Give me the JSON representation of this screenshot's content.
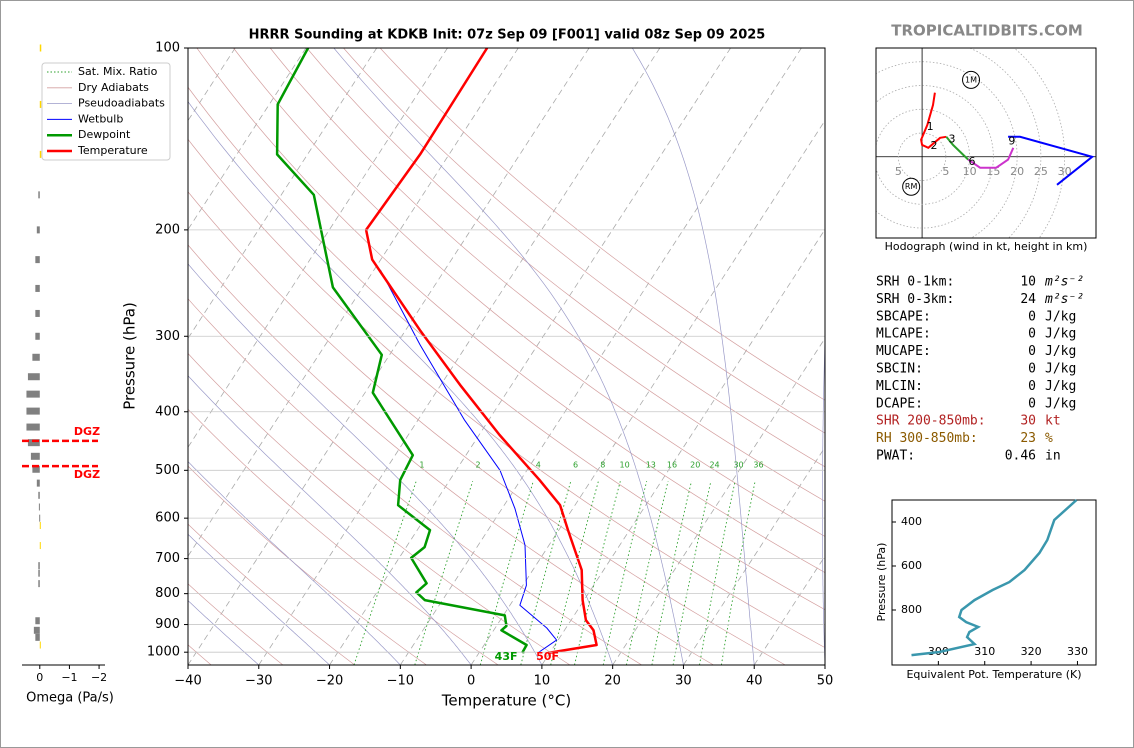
{
  "site": "TROPICALTIDBITS.COM",
  "chart_data": [
    {
      "type": "skewt",
      "title": "HRRR Sounding at KDKB Init: 07z Sep 09 [F001] valid 08z Sep 09 2025",
      "xlabel": "Temperature (°C)",
      "ylabel": "Pressure (hPa)",
      "log_y": true,
      "xlim": [
        -40,
        50
      ],
      "ylim": [
        1050,
        100
      ],
      "xticks": [
        {
          "value": -40,
          "label": "−40"
        },
        {
          "value": -30,
          "label": "−30"
        },
        {
          "value": -20,
          "label": "−20"
        },
        {
          "value": -10,
          "label": "−10"
        },
        0,
        10,
        20,
        30,
        40,
        50
      ],
      "yticks": [
        100,
        200,
        300,
        400,
        500,
        600,
        700,
        800,
        900,
        1000
      ],
      "reference_lines": [
        {
          "name": "Sat. Mix. Ratio",
          "color": "#2ca02c",
          "labels": [
            1,
            2,
            4,
            6,
            8,
            10,
            13,
            16,
            20,
            24,
            30,
            36
          ]
        },
        {
          "name": "Dry Adiabats",
          "color": "#d4a0a0"
        },
        {
          "name": "Pseudoadiabats",
          "color": "#9a9ac8"
        }
      ],
      "series": [
        {
          "name": "Wetbulb",
          "color": "#0000ff",
          "y": [
            1003,
            955,
            912,
            836,
            775,
            665,
            578,
            500,
            413,
            310,
            233
          ],
          "values": [
            8.3,
            9.8,
            7.3,
            1.4,
            0.5,
            -3.4,
            -8.2,
            -13.8,
            -23.4,
            -36.6,
            -49.1
          ]
        },
        {
          "name": "Dewpoint",
          "color": "#009900",
          "y": [
            1003,
            973,
            920,
            905,
            869,
            820,
            796,
            769,
            698,
            670,
            628,
            571,
            519,
            472,
            372,
            322,
            249,
            175,
            150,
            124,
            100
          ],
          "values": [
            6.1,
            6.0,
            1.1,
            1.4,
            0.2,
            -12.5,
            -14.4,
            -13.8,
            -18.3,
            -17.4,
            -18.2,
            -25.0,
            -27.0,
            -27.5,
            -38.9,
            -41.1,
            -54.2,
            -65.4,
            -74.3,
            -78.8,
            -79.7
          ]
        },
        {
          "name": "Temperature",
          "color": "#ff0000",
          "y": [
            1003,
            973,
            920,
            885,
            820,
            731,
            628,
            571,
            519,
            437,
            361,
            293,
            224,
            200,
            150,
            100
          ],
          "values": [
            9.7,
            15.9,
            14.1,
            12.1,
            9.8,
            6.9,
            1.3,
            -2.1,
            -7.3,
            -17.1,
            -27.3,
            -38.0,
            -51.2,
            -54.8,
            -54.1,
            -54.4
          ]
        }
      ],
      "surface_labels": [
        {
          "text": "43F",
          "color": "#009900"
        },
        {
          "text": "50F",
          "color": "#ff0000"
        }
      ]
    },
    {
      "type": "bar",
      "xlabel": "Omega (Pa/s)",
      "xlim": [
        0.6,
        -2.2
      ],
      "ylim": [
        1050,
        100
      ],
      "xticks": [
        0,
        {
          "value": -1,
          "label": "−1"
        },
        {
          "value": -2,
          "label": "−2"
        }
      ],
      "y": [
        100,
        124,
        150,
        175,
        200,
        224,
        250,
        275,
        300,
        325,
        350,
        374,
        399,
        424,
        450,
        474,
        498,
        525,
        550,
        575,
        600,
        617,
        666,
        719,
        740,
        770,
        887,
        920,
        945,
        973
      ],
      "values": [
        -0.05,
        -0.05,
        -0.05,
        0.05,
        0.1,
        0.15,
        0.15,
        0.15,
        0.15,
        0.25,
        0.4,
        0.45,
        0.45,
        0.45,
        0.4,
        0.3,
        0.25,
        0.1,
        0.05,
        0.03,
        0.02,
        -0.03,
        -0.03,
        0.05,
        0.05,
        0.05,
        0.15,
        0.2,
        0.15,
        -0.03
      ],
      "colors": [
        "#ffd700",
        "#ffd700",
        "#ffd700",
        "#808080",
        "#808080",
        "#808080",
        "#808080",
        "#808080",
        "#808080",
        "#808080",
        "#808080",
        "#808080",
        "#808080",
        "#808080",
        "#808080",
        "#808080",
        "#808080",
        "#808080",
        "#808080",
        "#808080",
        "#808080",
        "#ffd700",
        "#ffd700",
        "#808080",
        "#808080",
        "#808080",
        "#808080",
        "#808080",
        "#808080",
        "#ffd700"
      ],
      "dgz": [
        {
          "p": 447,
          "label": "DGZ"
        },
        {
          "p": 492,
          "label": "DGZ"
        }
      ]
    },
    {
      "type": "hodograph",
      "caption": "Hodograph (wind in kt, height in km)",
      "xlim": [
        -9.7,
        36.6
      ],
      "ylim": [
        -17.1,
        22.9
      ],
      "rings": [
        5,
        10,
        15,
        20,
        25,
        30
      ],
      "segments": [
        {
          "color": "#ff0000",
          "u": [
            2.7,
            2.3,
            1.1,
            -0.2,
            0,
            1.3,
            3.8,
            5.1
          ],
          "v": [
            13.5,
            10.9,
            6.7,
            3.6,
            2.5,
            1.9,
            4.0,
            4.2
          ]
        },
        {
          "color": "#2ca02c",
          "u": [
            5.1,
            6.5,
            9.7
          ],
          "v": [
            4.2,
            2.5,
            -0.6
          ]
        },
        {
          "color": "#cc33cc",
          "u": [
            9.7,
            12.2,
            15.6,
            18.1,
            19.2
          ],
          "v": [
            -0.6,
            -2.3,
            -2.3,
            -0.6,
            1.9
          ]
        },
        {
          "color": "#0000ff",
          "u": [
            18.1,
            20.6,
            35.8,
            28.4
          ],
          "v": [
            4.2,
            4.2,
            0,
            -5.9
          ]
        }
      ],
      "markers": [
        {
          "label": "1",
          "u": 1.7,
          "v": 6.3
        },
        {
          "label": "2",
          "u": 2.5,
          "v": 2.3
        },
        {
          "label": "3",
          "u": 6.3,
          "v": 3.6
        },
        {
          "label": "6",
          "u": 10.5,
          "v": -1.1
        },
        {
          "label": "9",
          "u": 18.9,
          "v": 3.2
        }
      ],
      "storm_motions": [
        {
          "label": "1M",
          "u": 10.3,
          "v": 16.2
        },
        {
          "label": "RM",
          "u": -2.3,
          "v": -6.3
        }
      ]
    },
    {
      "type": "line",
      "xlabel": "Equivalent Pot. Temperature (K)",
      "ylabel": "Pressure (hPa)",
      "xlim": [
        290,
        334
      ],
      "ylim": [
        1050,
        300
      ],
      "xticks": [
        300,
        310,
        320,
        330
      ],
      "yticks": [
        400,
        600,
        800
      ],
      "color": "#3a97ad",
      "y": [
        300,
        391,
        482,
        541,
        618,
        673,
        709,
        755,
        800,
        832,
        855,
        877,
        900,
        923,
        955,
        991,
        1005
      ],
      "values": [
        329.8,
        325.0,
        323.5,
        321.8,
        318.6,
        315.3,
        311.7,
        307.8,
        305.0,
        304.5,
        306.0,
        308.6,
        306.7,
        306.2,
        307.8,
        300.2,
        294.2
      ]
    }
  ],
  "parameters": {
    "rows": [
      {
        "label": "SRH 0-1km:",
        "value": 10,
        "unit": "m²s⁻²",
        "color": "#000000"
      },
      {
        "label": "SRH 0-3km:",
        "value": 24,
        "unit": "m²s⁻²",
        "color": "#000000"
      },
      {
        "label": "SBCAPE:",
        "value": 0,
        "unit": "J/kg",
        "color": "#000000"
      },
      {
        "label": "MLCAPE:",
        "value": 0,
        "unit": "J/kg",
        "color": "#000000"
      },
      {
        "label": "MUCAPE:",
        "value": 0,
        "unit": "J/kg",
        "color": "#000000"
      },
      {
        "label": "SBCIN:",
        "value": 0,
        "unit": "J/kg",
        "color": "#000000"
      },
      {
        "label": "MLCIN:",
        "value": 0,
        "unit": "J/kg",
        "color": "#000000"
      },
      {
        "label": "DCAPE:",
        "value": 0,
        "unit": "J/kg",
        "color": "#000000"
      },
      {
        "label": "SHR 200-850mb:",
        "value": 30,
        "unit": "kt",
        "color": "#b22222"
      },
      {
        "label": "RH 300-850mb:",
        "value": 23,
        "unit": "%",
        "color": "#8b5a00"
      },
      {
        "label": "PWAT:",
        "value": 0.46,
        "unit": "in",
        "color": "#000000"
      }
    ]
  }
}
